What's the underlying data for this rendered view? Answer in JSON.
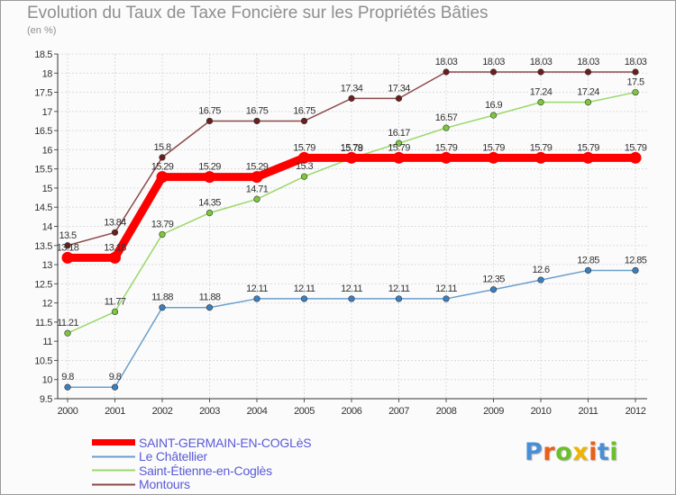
{
  "header": {
    "title": "Evolution du Taux de Taxe Foncière sur les Propriétés Bâties",
    "subtitle": "(en %)"
  },
  "logo": {
    "text": "Proxiti",
    "letter_colors": [
      "#4a8fd6",
      "#e8601a",
      "#6bbf2a",
      "#f0b400",
      "#e8601a",
      "#4a8fd6",
      "#6bbf2a"
    ]
  },
  "chart_data": {
    "type": "line",
    "title": "Evolution du Taux de Taxe Foncière sur les Propriétés Bâties",
    "ylabel": "(en %)",
    "xlabel": "",
    "x": [
      2000,
      2001,
      2002,
      2003,
      2004,
      2005,
      2006,
      2007,
      2008,
      2009,
      2010,
      2011,
      2012
    ],
    "ylim": [
      9.5,
      18.5
    ],
    "yticks": [
      "9.5",
      "10",
      "10.5",
      "11",
      "11.5",
      "12",
      "12.5",
      "13",
      "13.5",
      "14",
      "14.5",
      "15",
      "15.5",
      "16",
      "16.5",
      "17",
      "17.5",
      "18",
      "18.5"
    ],
    "grid": true,
    "series": [
      {
        "name": "Le Châtellier",
        "color": "#6a9fcc",
        "marker": "#3b7fc0",
        "values": [
          9.8,
          9.8,
          11.88,
          11.88,
          12.11,
          12.11,
          12.11,
          12.11,
          12.11,
          12.35,
          12.6,
          12.85,
          12.85
        ],
        "labels": [
          "9.8",
          "9.8",
          "11.88",
          "11.88",
          "12.11",
          "12.11",
          "12.11",
          "12.11",
          "12.11",
          "12.35",
          "12.6",
          "12.85",
          "12.85"
        ]
      },
      {
        "name": "Saint-Étienne-en-Coglès",
        "color": "#9ad86a",
        "marker": "#7cc83c",
        "values": [
          11.21,
          11.77,
          13.79,
          14.35,
          14.71,
          15.3,
          15.78,
          16.17,
          16.57,
          16.9,
          17.24,
          17.24,
          17.5
        ],
        "labels": [
          "11.21",
          "11.77",
          "13.79",
          "14.35",
          "14.71",
          "15.3",
          "15.78",
          "16.17",
          "16.57",
          "16.9",
          "17.24",
          "17.24",
          "17.5"
        ]
      },
      {
        "name": "Montours",
        "color": "#8b4a4a",
        "marker": "#6a1f1f",
        "values": [
          13.5,
          13.84,
          15.8,
          16.75,
          16.75,
          16.75,
          17.34,
          17.34,
          18.03,
          18.03,
          18.03,
          18.03,
          18.03
        ],
        "labels": [
          "13.5",
          "13.84",
          "15.8",
          "16.75",
          "16.75",
          "16.75",
          "17.34",
          "17.34",
          "18.03",
          "18.03",
          "18.03",
          "18.03",
          "18.03"
        ]
      },
      {
        "name": "SAINT-GERMAIN-EN-COGLèS",
        "color": "#ff0000",
        "marker": "#ff0000",
        "values": [
          13.18,
          13.18,
          15.29,
          15.29,
          15.29,
          15.79,
          15.79,
          15.79,
          15.79,
          15.79,
          15.79,
          15.79,
          15.79
        ],
        "labels": [
          "13.18",
          "13.18",
          "15.29",
          "15.29",
          "15.29",
          "15.79",
          "15.79",
          "15.79",
          "15.79",
          "15.79",
          "15.79",
          "15.79",
          "15.79"
        ]
      }
    ],
    "legend": {
      "placement": "bottom-left",
      "order": [
        "SAINT-GERMAIN-EN-COGLèS",
        "Le Châtellier",
        "Saint-Étienne-en-Coglès",
        "Montours"
      ]
    }
  }
}
